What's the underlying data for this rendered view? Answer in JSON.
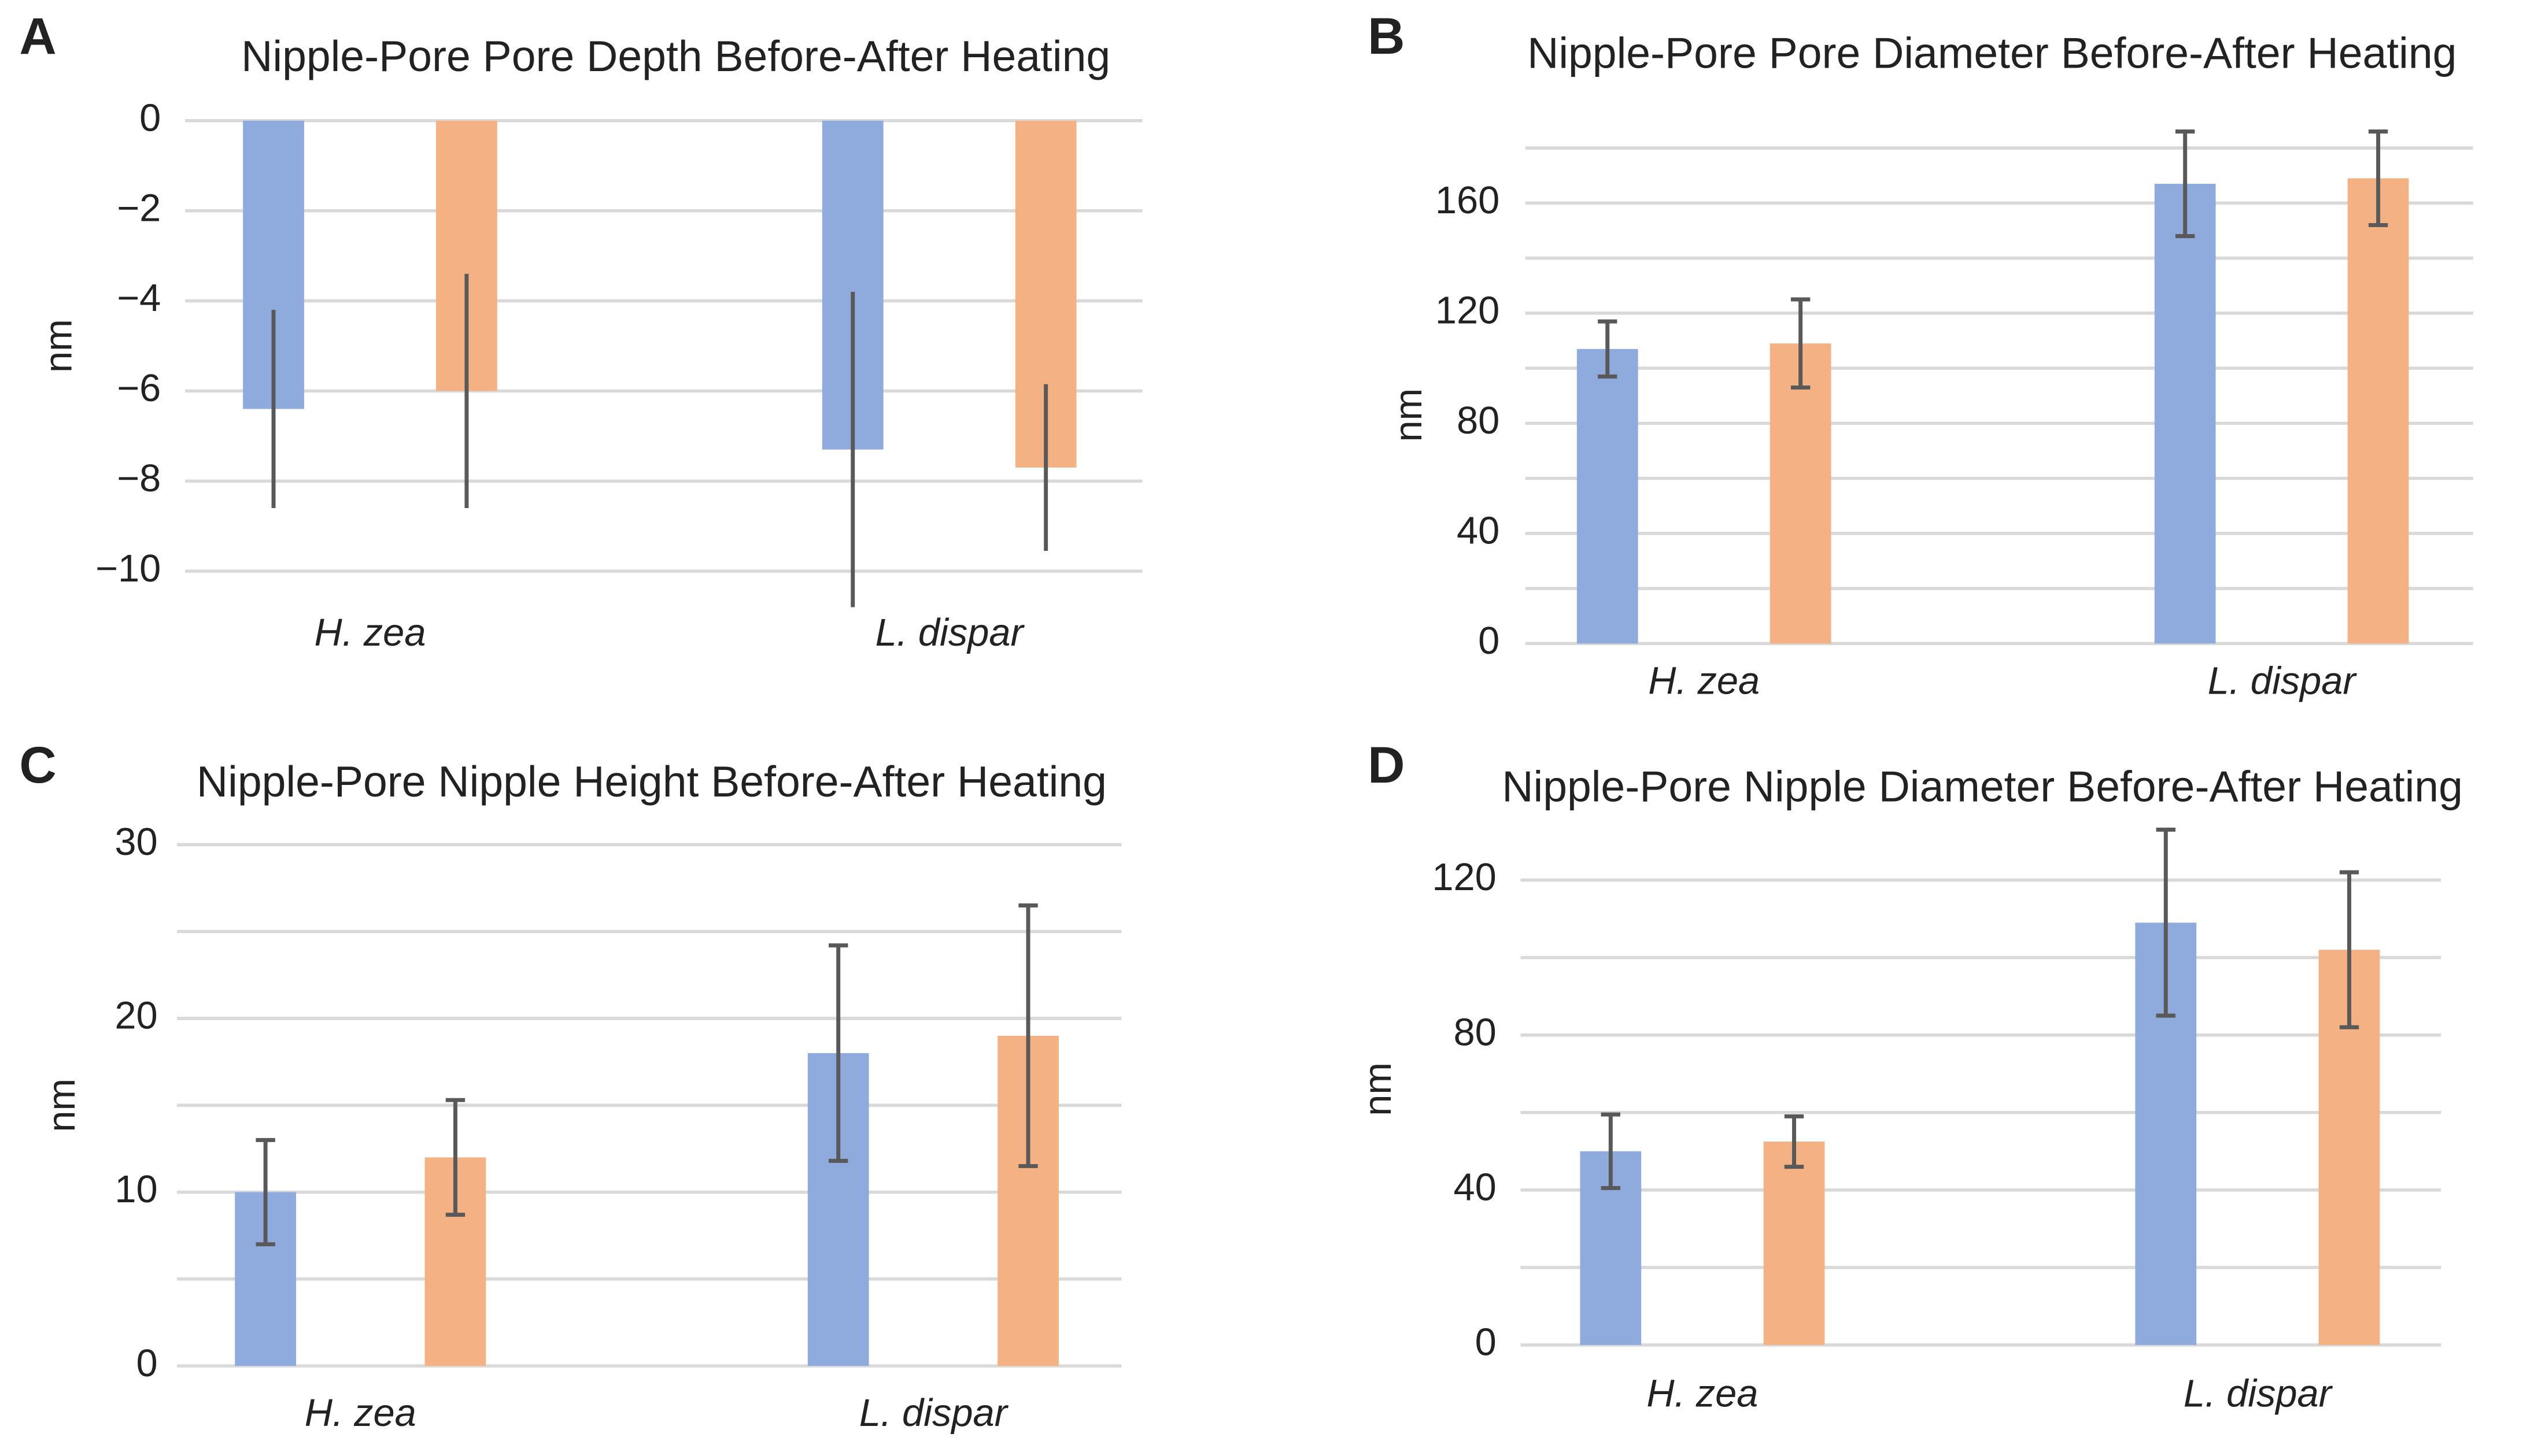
{
  "chart_data": [
    {
      "type": "bar",
      "panel_label": "A",
      "title": "Nipple-Pore Pore Depth Before-After Heating",
      "y_label": "nm",
      "categories": [
        "H. zea",
        "L. dispar"
      ],
      "series": [
        {
          "color": "#8faadc",
          "values": [
            -6.4,
            -7.3
          ],
          "errors": [
            2.2,
            3.5
          ]
        },
        {
          "color": "#f4b183",
          "values": [
            -6.0,
            -7.7
          ],
          "errors": [
            2.6,
            1.85
          ]
        }
      ],
      "ylim": [
        -10,
        0
      ],
      "yticks": [
        0,
        {
          "value": -2,
          "label": "−2"
        },
        {
          "value": -4,
          "label": "−4"
        },
        {
          "value": -6,
          "label": "−6"
        },
        {
          "value": -8,
          "label": "−8"
        },
        {
          "value": -10,
          "label": "−10"
        }
      ],
      "ygrid": [
        0,
        -2,
        -4,
        -6,
        -8,
        -10
      ],
      "error_caps": false
    },
    {
      "type": "bar",
      "panel_label": "B",
      "title": "Nipple-Pore Pore Diameter Before-After Heating",
      "y_label": "nm",
      "categories": [
        "H. zea",
        "L. dispar"
      ],
      "series": [
        {
          "color": "#8faadc",
          "values": [
            107,
            167
          ],
          "errors": [
            10,
            19
          ]
        },
        {
          "color": "#f4b183",
          "values": [
            109,
            169
          ],
          "errors": [
            16,
            17
          ]
        }
      ],
      "ylim": [
        0,
        180
      ],
      "yticks": [
        0,
        40,
        80,
        120,
        160
      ],
      "ygrid": [
        0,
        20,
        40,
        60,
        80,
        100,
        120,
        140,
        160,
        180
      ],
      "error_caps": true
    },
    {
      "type": "bar",
      "panel_label": "C",
      "title": "Nipple-Pore Nipple Height Before-After Heating",
      "y_label": "nm",
      "categories": [
        "H. zea",
        "L. dispar"
      ],
      "series": [
        {
          "color": "#8faadc",
          "values": [
            10,
            18
          ],
          "errors": [
            3,
            6.2
          ]
        },
        {
          "color": "#f4b183",
          "values": [
            12,
            19
          ],
          "errors": [
            3.3,
            7.5
          ]
        }
      ],
      "ylim": [
        0,
        30
      ],
      "yticks": [
        0,
        10,
        20,
        30
      ],
      "ygrid": [
        0,
        5,
        10,
        15,
        20,
        25,
        30
      ],
      "error_caps": true
    },
    {
      "type": "bar",
      "panel_label": "D",
      "title": "Nipple-Pore Nipple Diameter Before-After Heating",
      "y_label": "nm",
      "categories": [
        "H. zea",
        "L. dispar"
      ],
      "series": [
        {
          "color": "#8faadc",
          "values": [
            50,
            109
          ],
          "errors": [
            9.5,
            24
          ]
        },
        {
          "color": "#f4b183",
          "values": [
            52.5,
            102
          ],
          "errors": [
            6.5,
            20
          ]
        }
      ],
      "ylim": [
        0,
        120
      ],
      "yticks": [
        0,
        40,
        80,
        120
      ],
      "ygrid": [
        0,
        20,
        40,
        60,
        80,
        100,
        120
      ],
      "error_caps": true
    }
  ]
}
